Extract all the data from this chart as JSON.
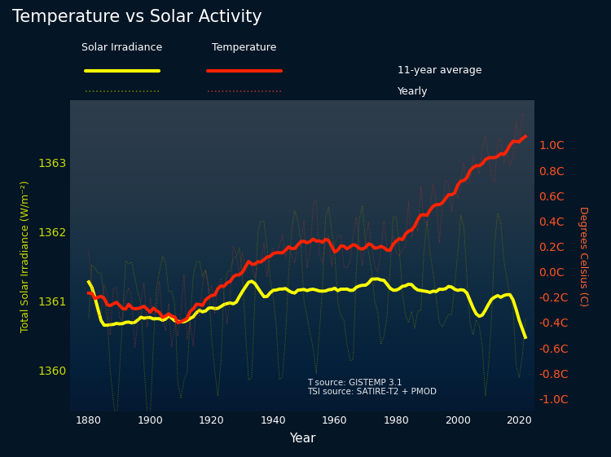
{
  "title": "Temperature vs Solar Activity",
  "xlabel": "Year",
  "ylabel_left": "Total Solar Irradiance (W/m⁻²)",
  "ylabel_right": "Degrees Celsius (C)",
  "bg_color": "#041525",
  "title_color": "white",
  "annotation": "T source: GISTEMP 3.1\nTSI source: SATIRE-T2 + PMOD",
  "tsi_ylim": [
    1359.4,
    1363.9
  ],
  "temp_ylim": [
    -1.1,
    1.35
  ],
  "tsi_yticks": [
    1360,
    1361,
    1362,
    1363
  ],
  "temp_yticks": [
    -1.0,
    -0.8,
    -0.6,
    -0.4,
    -0.2,
    0.0,
    0.2,
    0.4,
    0.6,
    0.8,
    1.0
  ],
  "temp_tick_labels": [
    "-1.0C",
    "-0.8C",
    "-0.6C",
    "-0.4C",
    "-0.2C",
    "0.0C",
    "0.2C",
    "0.4C",
    "0.6C",
    "0.8C",
    "1.0C"
  ],
  "xlim": [
    1874,
    2025
  ],
  "xticks": [
    1880,
    1900,
    1920,
    1940,
    1960,
    1980,
    2000,
    2020
  ],
  "temp_smooth_color": "#FF2200",
  "temp_yearly_color": "#993333",
  "tsi_smooth_color": "#FFFF00",
  "tsi_yearly_color": "#6B7A00",
  "ylabel_left_color": "#CCDD00",
  "ylabel_right_color": "#FF6633",
  "tick_left_color": "#CCDD00",
  "tick_right_color": "#FF5522"
}
